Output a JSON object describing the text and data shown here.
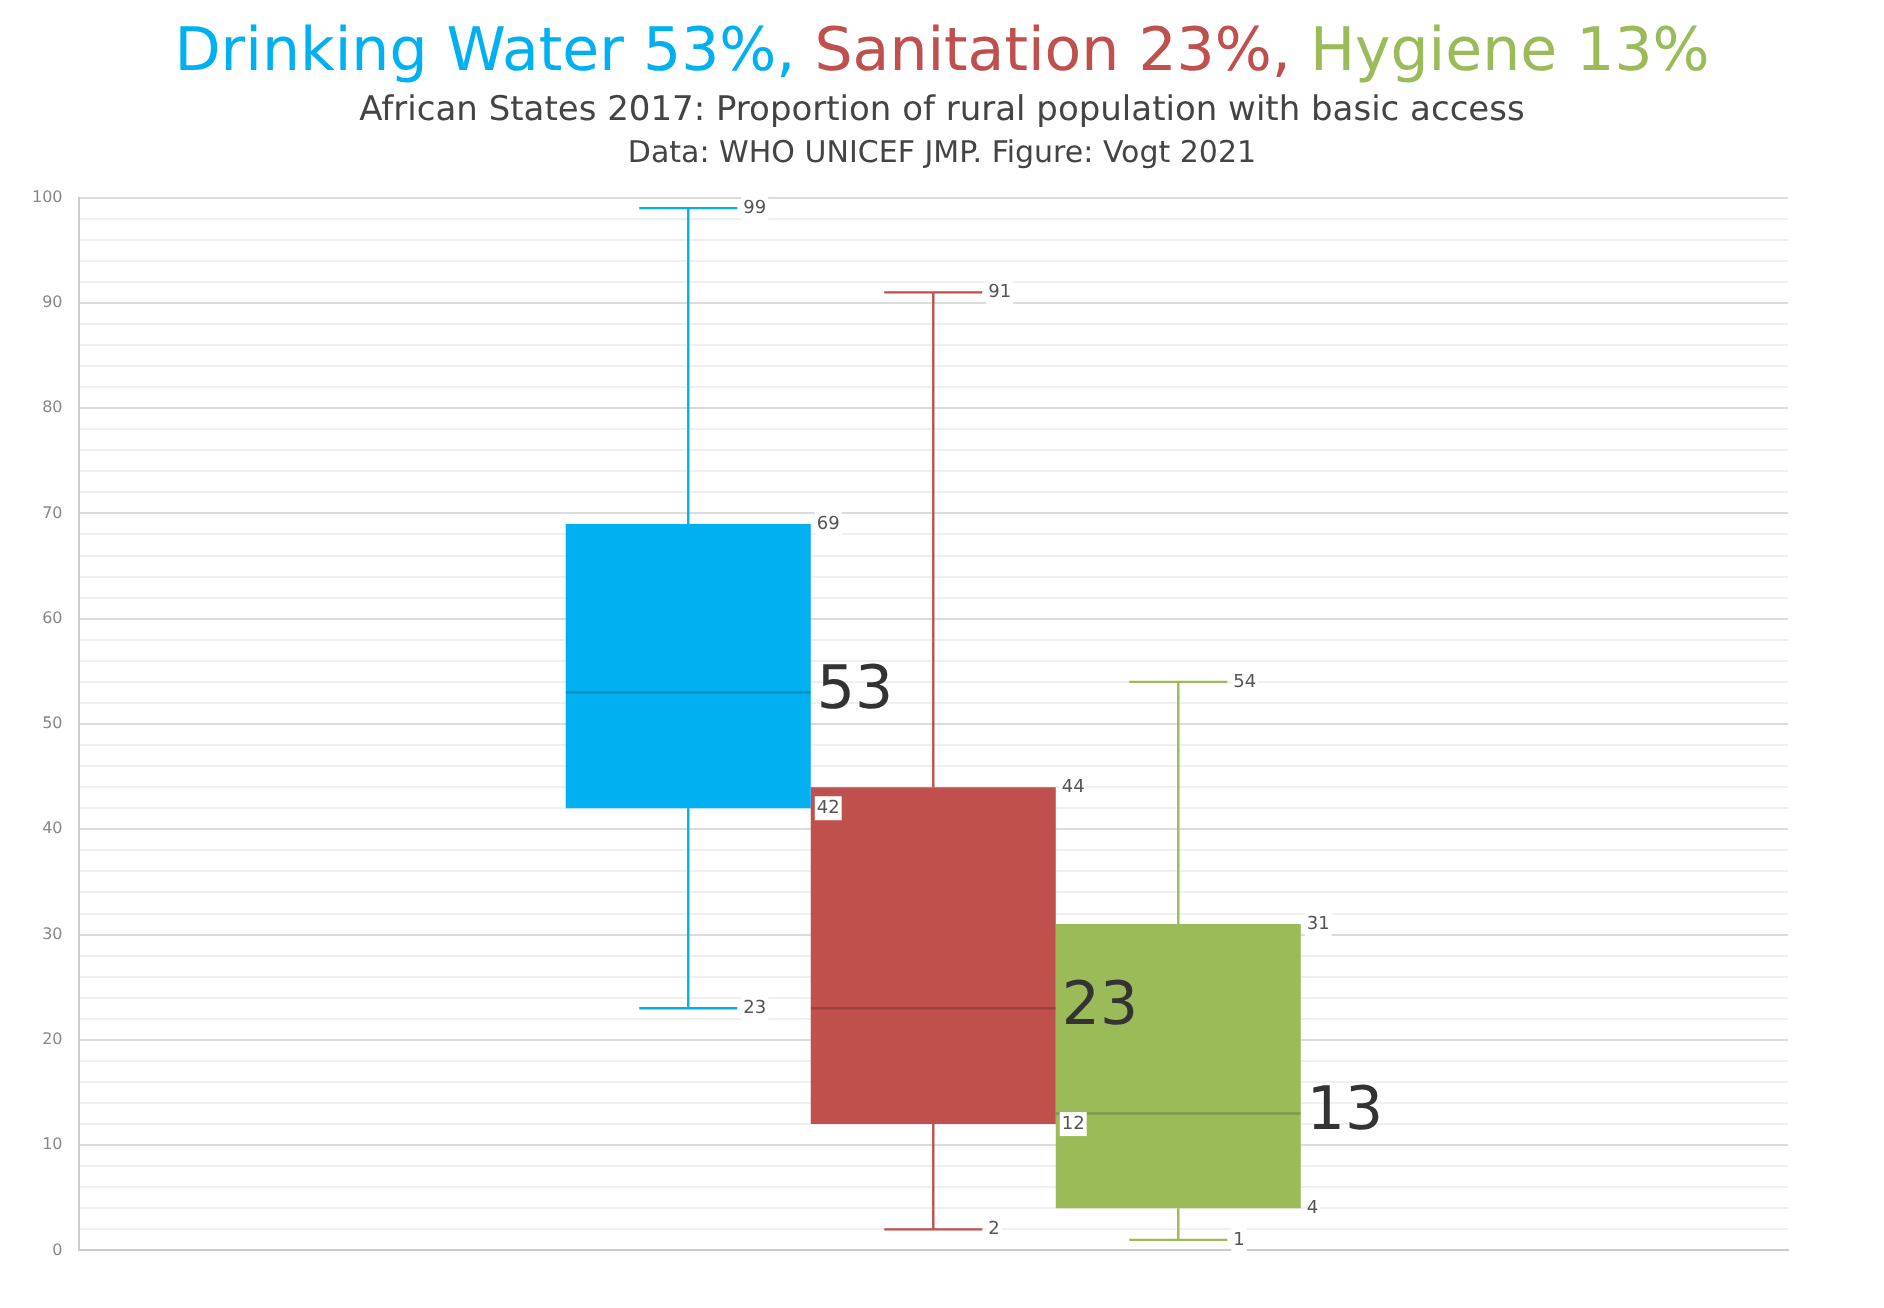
{
  "chart_data": {
    "type": "box",
    "title": "African States 2017: Proportion of rural population with basic access",
    "subtitle": "Data: WHO UNICEF JMP. Figure: Vogt 2021",
    "categories": [
      null
    ],
    "series": [
      {
        "name": "Drinking Water 53%,",
        "color": "#00b0f0",
        "boxes": [
          {
            "low": 23,
            "q1": 42,
            "median": 53,
            "q3": 69,
            "high": 99
          }
        ]
      },
      {
        "name": "Sanitation 23%,",
        "color": "#c0504d",
        "boxes": [
          {
            "low": 2,
            "q1": 12,
            "median": 23,
            "q3": 44,
            "high": 91
          }
        ]
      },
      {
        "name": "Hygiene 13%",
        "color": "#9bbb59",
        "boxes": [
          {
            "low": 1,
            "q1": 4,
            "median": 13,
            "q3": 31,
            "high": 54
          }
        ]
      }
    ],
    "ylim": [
      0,
      100
    ],
    "yticks": [
      0,
      {
        "value": 2,
        "label": null
      },
      {
        "value": 4,
        "label": null
      },
      {
        "value": 6,
        "label": null
      },
      {
        "value": 8,
        "label": null
      },
      10,
      {
        "value": 12,
        "label": null
      },
      {
        "value": 14,
        "label": null
      },
      {
        "value": 16,
        "label": null
      },
      {
        "value": 18,
        "label": null
      },
      20,
      {
        "value": 22,
        "label": null
      },
      {
        "value": 24,
        "label": null
      },
      {
        "value": 26,
        "label": null
      },
      {
        "value": 28,
        "label": null
      },
      30,
      {
        "value": 32,
        "label": null
      },
      {
        "value": 34,
        "label": null
      },
      {
        "value": 36,
        "label": null
      },
      {
        "value": 38,
        "label": null
      },
      40,
      {
        "value": 42,
        "label": null
      },
      {
        "value": 44,
        "label": null
      },
      {
        "value": 46,
        "label": null
      },
      {
        "value": 48,
        "label": null
      },
      50,
      {
        "value": 52,
        "label": null
      },
      {
        "value": 54,
        "label": null
      },
      {
        "value": 56,
        "label": null
      },
      {
        "value": 58,
        "label": null
      },
      60,
      {
        "value": 62,
        "label": null
      },
      {
        "value": 64,
        "label": null
      },
      {
        "value": 66,
        "label": null
      },
      {
        "value": 68,
        "label": null
      },
      70,
      {
        "value": 72,
        "label": null
      },
      {
        "value": 74,
        "label": null
      },
      {
        "value": 76,
        "label": null
      },
      {
        "value": 78,
        "label": null
      },
      80,
      {
        "value": 82,
        "label": null
      },
      {
        "value": 84,
        "label": null
      },
      {
        "value": 86,
        "label": null
      },
      {
        "value": 88,
        "label": null
      },
      90,
      {
        "value": 92,
        "label": null
      },
      {
        "value": 94,
        "label": null
      },
      {
        "value": 96,
        "label": null
      },
      {
        "value": 98,
        "label": null
      },
      100
    ],
    "grid": "y",
    "tick_labels": "y",
    "legend": "top",
    "annotations": [
      {
        "text": "99",
        "y": 99
      },
      {
        "text": "69",
        "y": 69
      },
      "53",
      {
        "text": "42",
        "y": 42
      },
      {
        "text": "23",
        "y": 23
      },
      {
        "text": "91",
        "y": 91
      },
      {
        "text": "44",
        "y": 44
      },
      "23",
      {
        "text": "12",
        "y": 12
      },
      {
        "text": "2",
        "y": 2
      },
      {
        "text": "54",
        "y": 54
      },
      {
        "text": "31",
        "y": 31
      },
      "13",
      {
        "text": "4",
        "y": 4
      },
      {
        "text": "1",
        "y": 1
      }
    ]
  }
}
